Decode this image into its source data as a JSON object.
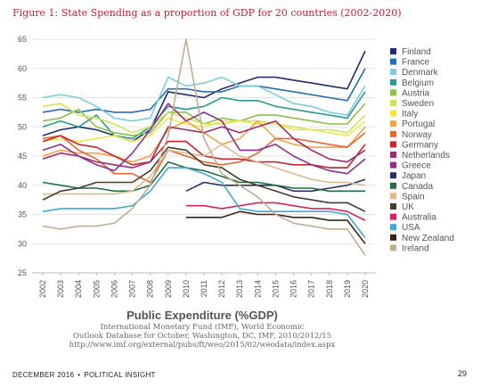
{
  "figure": {
    "title": "Figure 1: State Spending as a proportion of GDP for 20 countries (2002-2020)"
  },
  "footer": {
    "left_month": "DECEMBER 2016",
    "left_separator": "•",
    "left_publication": "POLITICAL INSIGHT",
    "page_number": "29"
  },
  "chart_data": {
    "type": "line",
    "title": "Figure 1: State Spending as a proportion of GDP for 20 countries (2002-2020)",
    "xlabel": "Public Expenditure (%GDP)",
    "ylabel": "",
    "source_lines": [
      "International  Monetary Fund (IMF), World Economic",
      "Outlook Database for October, Washington, DC, IMF, 2010/2012/15",
      "http://www.imf.org/external/pubs/ft/weo/2015/02/weodata/index.aspx"
    ],
    "x": [
      "2002",
      "2003",
      "2004",
      "2005",
      "2006",
      "2007",
      "2008",
      "2009",
      "2010",
      "2011",
      "2012",
      "2013",
      "2014",
      "2015",
      "2016",
      "2017",
      "2018",
      "2019",
      "2020"
    ],
    "ylim": [
      25,
      65
    ],
    "yticks": [
      25,
      30,
      35,
      40,
      45,
      50,
      55,
      60,
      65
    ],
    "grid": true,
    "legend_position": "right",
    "series": [
      {
        "name": "Finland",
        "color": "#1f2f6b",
        "values": [
          48.5,
          49.5,
          50,
          49.5,
          48.5,
          47.5,
          49.5,
          56,
          55.5,
          55,
          56.5,
          57.5,
          58.5,
          58.5,
          58,
          57.5,
          57,
          56.5,
          63
        ]
      },
      {
        "name": "France",
        "color": "#2a6db0",
        "values": [
          52.5,
          53,
          52.5,
          53,
          52.5,
          52.5,
          53,
          56.5,
          56.5,
          56,
          56,
          57,
          57,
          56.5,
          56,
          55.5,
          55,
          54.5,
          60
        ]
      },
      {
        "name": "Denmark",
        "color": "#7fcbe2",
        "values": [
          55,
          55.5,
          55,
          53.5,
          51.5,
          51,
          51.5,
          58.5,
          57,
          57.5,
          58.5,
          57,
          57,
          55.5,
          54,
          53.5,
          52.5,
          52,
          57
        ]
      },
      {
        "name": "Belgium",
        "color": "#2a9a8e",
        "values": [
          50,
          51,
          50,
          52,
          48.5,
          48,
          50,
          53.5,
          53,
          53.5,
          55,
          54.5,
          54.5,
          53.5,
          53,
          52.5,
          52,
          51.5,
          56
        ]
      },
      {
        "name": "Austria",
        "color": "#8dc04a",
        "values": [
          51,
          51.5,
          53,
          50,
          49,
          48.5,
          49,
          52.5,
          52.5,
          50.5,
          51.5,
          51,
          52,
          52,
          51.5,
          51,
          50.5,
          50.5,
          54
        ]
      },
      {
        "name": "Sweden",
        "color": "#cce35a",
        "values": [
          53.5,
          54,
          52,
          51.5,
          50.5,
          49,
          50,
          52.5,
          51.5,
          50.5,
          50.5,
          51,
          51,
          50.5,
          50,
          49.5,
          49.5,
          49,
          52
        ]
      },
      {
        "name": "Italy",
        "color": "#f3e34d",
        "values": [
          47.5,
          48,
          47.5,
          48,
          48.5,
          47.5,
          48.5,
          51.5,
          50.5,
          50,
          51,
          51,
          50.5,
          50.5,
          49.5,
          49.5,
          49,
          48.5,
          51
        ]
      },
      {
        "name": "Portugal",
        "color": "#f0a347",
        "values": [
          45,
          46,
          45.5,
          45.5,
          45,
          44,
          45,
          49.5,
          51,
          49,
          47,
          48,
          51,
          48,
          47,
          46.5,
          46.5,
          46.5,
          50
        ]
      },
      {
        "name": "Norway",
        "color": "#e06a33",
        "values": [
          48,
          48.5,
          46,
          44.5,
          42,
          42,
          40.5,
          46,
          45,
          44,
          43.5,
          44,
          45.5,
          48,
          48,
          47.5,
          47,
          46.5,
          49
        ]
      },
      {
        "name": "Germany",
        "color": "#c4262e",
        "values": [
          47.5,
          48.5,
          47,
          46.5,
          45,
          43.5,
          44,
          47.5,
          47.5,
          45,
          44.5,
          44.5,
          44,
          44,
          43.5,
          43.5,
          43,
          43,
          47
        ]
      },
      {
        "name": "Netherlands",
        "color": "#9c2d6b",
        "values": [
          44.5,
          45.5,
          45,
          44,
          43.5,
          43,
          44,
          50,
          49.5,
          49,
          50,
          49,
          50,
          51,
          48,
          46,
          44.5,
          44,
          46
        ]
      },
      {
        "name": "Greece",
        "color": "#8e2e8f",
        "values": [
          46,
          47,
          45,
          43.5,
          42.5,
          45.5,
          49.5,
          54,
          51,
          52.5,
          51,
          46,
          46,
          47,
          45,
          43.5,
          42.5,
          42,
          44.5
        ]
      },
      {
        "name": "Japan",
        "color": "#2b2f6e",
        "values": [
          null,
          null,
          null,
          null,
          null,
          null,
          null,
          null,
          39,
          40.5,
          40,
          40,
          40,
          40,
          39,
          39,
          39.5,
          40,
          41
        ]
      },
      {
        "name": "Canada",
        "color": "#1f6e44",
        "values": [
          40.5,
          40,
          39.5,
          39.5,
          39,
          39,
          40,
          44,
          43,
          42.5,
          41.5,
          40.5,
          40.5,
          40,
          39.5,
          39.5,
          39,
          39,
          39
        ]
      },
      {
        "name": "Spain",
        "color": "#dfb98e",
        "values": [
          38.5,
          38.5,
          38.5,
          38.5,
          38.5,
          39,
          41.5,
          46,
          45.5,
          45,
          47,
          45,
          44,
          43,
          42,
          41,
          40.5,
          40.5,
          40
        ]
      },
      {
        "name": "UK",
        "color": "#4a3a2c",
        "values": [
          37.5,
          39,
          39.5,
          40.5,
          40.5,
          40.5,
          42.5,
          46.5,
          46,
          43.5,
          43,
          41,
          40,
          39,
          38,
          37.5,
          37,
          37,
          35.5
        ]
      },
      {
        "name": "Australia",
        "color": "#d4235f",
        "values": [
          null,
          null,
          null,
          null,
          null,
          null,
          null,
          null,
          36.5,
          36.5,
          36,
          36.5,
          37,
          37,
          36.5,
          36,
          36,
          35.5,
          34
        ]
      },
      {
        "name": "USA",
        "color": "#40a8d8",
        "values": [
          35.5,
          36,
          36,
          36,
          36,
          36.5,
          39,
          43,
          43,
          42,
          40.5,
          36,
          35.5,
          35.5,
          35.5,
          35.5,
          35.5,
          35,
          31
        ]
      },
      {
        "name": "New Zealand",
        "color": "#3a2418",
        "values": [
          null,
          null,
          null,
          null,
          null,
          null,
          null,
          null,
          34.5,
          34.5,
          34.5,
          35.5,
          35,
          35,
          34.5,
          34.5,
          34,
          34,
          30
        ]
      },
      {
        "name": "Ireland",
        "color": "#c2ad90",
        "values": [
          33,
          32.5,
          33,
          33,
          33.5,
          36,
          40,
          48.5,
          65,
          48,
          42,
          40,
          38,
          35,
          33.5,
          33,
          32.5,
          32.5,
          28
        ]
      }
    ]
  }
}
